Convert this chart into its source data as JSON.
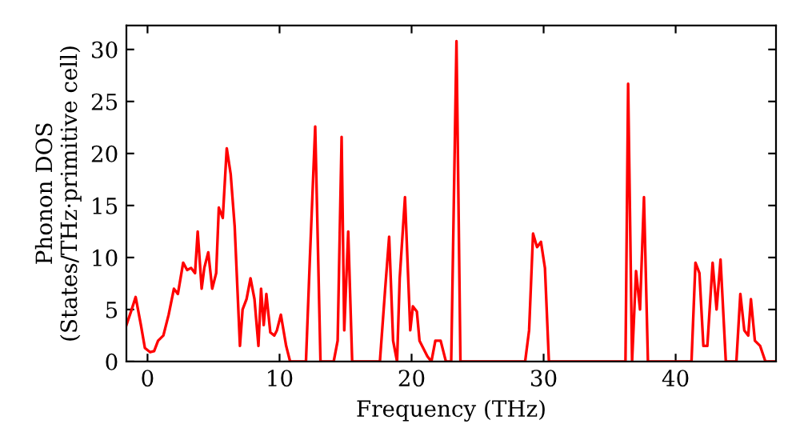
{
  "chart_data": {
    "type": "line",
    "xlabel": "Frequency (THz)",
    "ylabel": "Phonon DOS\n(States/THz·primitive cell)",
    "xlim": [
      -1.6,
      47.6
    ],
    "ylim": [
      0,
      32.3
    ],
    "xticks": [
      0,
      10,
      20,
      30,
      40
    ],
    "yticks": [
      0,
      5,
      10,
      15,
      20,
      25,
      30
    ],
    "grid": false,
    "series": [
      {
        "color": "#ff0000",
        "x": [
          -1.6,
          -1.2,
          -0.9,
          -0.5,
          -0.2,
          0.2,
          0.5,
          0.8,
          1.2,
          1.6,
          2,
          2.3,
          2.7,
          3,
          3.3,
          3.6,
          3.8,
          4.1,
          4.3,
          4.6,
          4.9,
          5.2,
          5.4,
          5.7,
          6,
          6.3,
          6.6,
          7,
          7.2,
          7.5,
          7.8,
          8.1,
          8.4,
          8.6,
          8.8,
          9,
          9.3,
          9.6,
          9.8,
          10.1,
          10.5,
          10.8,
          12,
          12.3,
          12.7,
          13.1,
          14.1,
          14.4,
          14.7,
          14.9,
          15.2,
          15.5,
          17.6,
          18,
          18.3,
          18.6,
          18.9,
          19.1,
          19.5,
          19.9,
          20.1,
          20.4,
          20.6,
          21.2,
          21.5,
          21.8,
          22.2,
          22.6,
          23.0,
          23.4,
          23.7,
          28.6,
          28.9,
          29.2,
          29.5,
          29.8,
          30.1,
          30.4,
          36.2,
          36.4,
          36.7,
          37.0,
          37.3,
          37.6,
          37.9,
          41.2,
          41.5,
          41.8,
          42.1,
          42.4,
          42.8,
          43.1,
          43.4,
          43.8,
          44.6,
          44.9,
          45.2,
          45.5,
          45.7,
          46,
          46.4,
          46.8,
          47.6
        ],
        "values": [
          3.5,
          5,
          6.2,
          3.5,
          1.3,
          0.9,
          1,
          2,
          2.5,
          4.5,
          7,
          6.5,
          9.5,
          8.8,
          9,
          8.5,
          12.5,
          7,
          9,
          10.5,
          7,
          8.5,
          14.8,
          13.8,
          20.5,
          18,
          13,
          1.5,
          5,
          6,
          8,
          6,
          1.5,
          7,
          3.5,
          6.5,
          2.8,
          2.5,
          3,
          4.5,
          1.5,
          0,
          0,
          10,
          22.6,
          0,
          0,
          2,
          21.6,
          3,
          12.5,
          0,
          0,
          7,
          12,
          2,
          0,
          8,
          15.8,
          3,
          5.3,
          4.8,
          2,
          0.5,
          0,
          2,
          2,
          0,
          0,
          30.8,
          0,
          0,
          3,
          12.3,
          11,
          11.5,
          9,
          0,
          0,
          26.7,
          0,
          8.7,
          5,
          15.8,
          0,
          0,
          9.5,
          8.5,
          1.5,
          1.5,
          9.5,
          5,
          9.8,
          0,
          0,
          6.5,
          3,
          2.5,
          6,
          2,
          1.5,
          0,
          0
        ]
      }
    ]
  }
}
